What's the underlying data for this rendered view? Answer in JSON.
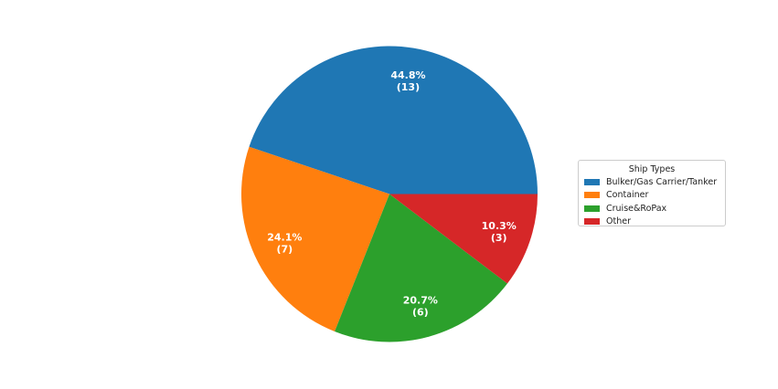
{
  "chart_data": {
    "type": "pie",
    "title": "",
    "slices": [
      {
        "label": "Bulker/Gas Carrier/Tanker",
        "value": 13,
        "percent": "44.8%",
        "count": "(13)",
        "color": "#1f77b4"
      },
      {
        "label": "Container",
        "value": 7,
        "percent": "24.1%",
        "count": "(7)",
        "color": "#ff7f0e"
      },
      {
        "label": "Cruise&RoPax",
        "value": 6,
        "percent": "20.7%",
        "count": "(6)",
        "color": "#2ca02c"
      },
      {
        "label": "Other",
        "value": 3,
        "percent": "10.3%",
        "count": "(3)",
        "color": "#d62728"
      }
    ],
    "start_angle_deg": 0,
    "direction": "counterclockwise",
    "legend": {
      "title": "Ship Types",
      "placement": "right"
    }
  }
}
